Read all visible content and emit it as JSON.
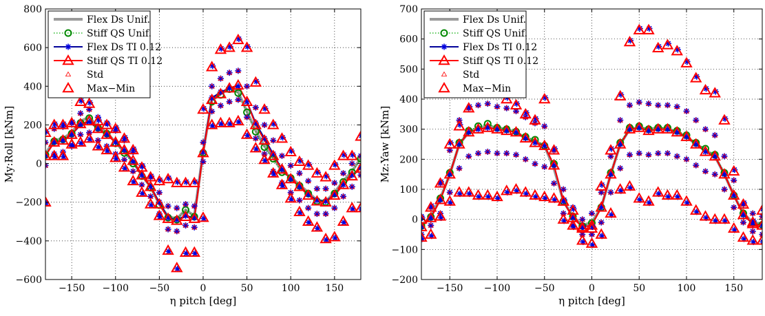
{
  "chart_data": [
    {
      "type": "scatter",
      "xlabel": "η pitch [deg]",
      "ylabel": "My:Roll  [kNm]",
      "xlim": [
        -180,
        180
      ],
      "ylim": [
        -600,
        800
      ],
      "xticks": [
        -150,
        -100,
        -50,
        0,
        50,
        100,
        150
      ],
      "yticks": [
        -600,
        -400,
        -200,
        0,
        200,
        400,
        600,
        800
      ],
      "xtick_labels": [
        "−150",
        "−100",
        "−50",
        "0",
        "50",
        "100",
        "150"
      ],
      "ytick_labels": [
        "−600",
        "−400",
        "−200",
        "0",
        "200",
        "400",
        "600",
        "800"
      ],
      "grid": true,
      "legend_position": "top-left",
      "legend": [
        "Flex Ds Unif.",
        "Stiff QS Unif.",
        "Flex Ds TI 0.12",
        "Stiff QS TI 0.12",
        "Std",
        "Max−Min"
      ],
      "x": [
        -180,
        -170,
        -160,
        -150,
        -140,
        -130,
        -120,
        -110,
        -100,
        -90,
        -80,
        -70,
        -60,
        -50,
        -40,
        -30,
        -20,
        -10,
        0,
        10,
        20,
        30,
        40,
        50,
        60,
        70,
        80,
        90,
        100,
        110,
        120,
        130,
        140,
        150,
        160,
        170,
        180
      ],
      "series": [
        {
          "name": "Flex Ds Unif.",
          "values": [
            50,
            120,
            130,
            160,
            220,
            240,
            190,
            160,
            110,
            60,
            10,
            -60,
            -120,
            -210,
            -275,
            -285,
            -240,
            -270,
            60,
            330,
            360,
            390,
            370,
            270,
            170,
            90,
            30,
            -40,
            -70,
            -110,
            -150,
            -190,
            -195,
            -150,
            -90,
            -40,
            30
          ]
        },
        {
          "name": "Stiff QS Unif.",
          "values": [
            45,
            115,
            125,
            155,
            210,
            235,
            185,
            155,
            105,
            55,
            0,
            -65,
            -125,
            -215,
            -280,
            -290,
            -240,
            -275,
            55,
            320,
            355,
            385,
            365,
            265,
            165,
            85,
            25,
            -45,
            -75,
            -115,
            -155,
            -195,
            -200,
            -155,
            -95,
            -45,
            25
          ]
        },
        {
          "name": "Flex Ds TI 0.12",
          "values": [
            40,
            110,
            120,
            150,
            200,
            215,
            180,
            150,
            110,
            70,
            10,
            -60,
            -120,
            -200,
            -280,
            -290,
            -270,
            -280,
            60,
            340,
            370,
            390,
            400,
            320,
            210,
            130,
            50,
            -30,
            -80,
            -120,
            -160,
            -190,
            -195,
            -160,
            -110,
            -60,
            -20
          ]
        },
        {
          "name": "Stiff QS TI 0.12",
          "values": [
            40,
            110,
            120,
            150,
            205,
            220,
            180,
            150,
            110,
            70,
            15,
            -60,
            -120,
            -210,
            -285,
            -295,
            -275,
            -285,
            55,
            330,
            360,
            390,
            405,
            320,
            200,
            120,
            40,
            -30,
            -80,
            -120,
            -165,
            -195,
            -200,
            -165,
            -110,
            -65,
            -25
          ]
        },
        {
          "name": "Std upper",
          "values": [
            110,
            180,
            190,
            210,
            260,
            280,
            240,
            210,
            170,
            120,
            60,
            -10,
            -70,
            -150,
            -220,
            -230,
            -210,
            -220,
            110,
            400,
            440,
            470,
            480,
            400,
            290,
            200,
            120,
            40,
            -10,
            -50,
            -90,
            -130,
            -130,
            -100,
            -50,
            0,
            40
          ]
        },
        {
          "name": "Std lower",
          "values": [
            -10,
            50,
            60,
            90,
            150,
            160,
            120,
            90,
            50,
            20,
            -40,
            -110,
            -170,
            -260,
            -340,
            -350,
            -320,
            -330,
            10,
            270,
            300,
            320,
            330,
            240,
            130,
            50,
            -40,
            -100,
            -150,
            -190,
            -230,
            -260,
            -260,
            -230,
            -170,
            -120,
            -60
          ]
        },
        {
          "name": "Max upper",
          "values": [
            160,
            200,
            200,
            210,
            320,
            310,
            220,
            200,
            180,
            130,
            70,
            -20,
            -70,
            -90,
            -80,
            -100,
            -100,
            -100,
            280,
            500,
            590,
            600,
            640,
            600,
            420,
            280,
            200,
            130,
            60,
            10,
            -10,
            -50,
            -70,
            -10,
            40,
            40,
            140
          ]
        },
        {
          "name": "Max lower",
          "values": [
            -200,
            40,
            40,
            100,
            110,
            130,
            90,
            70,
            30,
            -20,
            -90,
            -150,
            -210,
            -270,
            -450,
            -540,
            -460,
            -460,
            -280,
            200,
            210,
            210,
            220,
            150,
            80,
            20,
            -50,
            -110,
            -180,
            -250,
            -300,
            -330,
            -390,
            -380,
            -300,
            -230,
            -230
          ]
        }
      ]
    },
    {
      "type": "scatter",
      "xlabel": "η pitch [deg]",
      "ylabel": "Mz:Yaw  [kNm]",
      "xlim": [
        -180,
        180
      ],
      "ylim": [
        -200,
        700
      ],
      "xticks": [
        -150,
        -100,
        -50,
        0,
        50,
        100,
        150
      ],
      "yticks": [
        -200,
        -100,
        0,
        100,
        200,
        300,
        400,
        500,
        600,
        700
      ],
      "xtick_labels": [
        "−150",
        "−100",
        "−50",
        "0",
        "50",
        "100",
        "150"
      ],
      "ytick_labels": [
        "−200",
        "−100",
        "0",
        "100",
        "200",
        "300",
        "400",
        "500",
        "600",
        "700"
      ],
      "grid": true,
      "legend_position": "top-left",
      "legend": [
        "Flex Ds Unif.",
        "Stiff QS Unif.",
        "Flex Ds TI 0.12",
        "Stiff QS TI 0.12",
        "Std",
        "Max−Min"
      ],
      "x": [
        -180,
        -170,
        -160,
        -150,
        -140,
        -130,
        -120,
        -110,
        -100,
        -90,
        -80,
        -70,
        -60,
        -50,
        -40,
        -30,
        -20,
        -10,
        0,
        10,
        20,
        30,
        40,
        50,
        60,
        70,
        80,
        90,
        100,
        110,
        120,
        130,
        140,
        150,
        160,
        170,
        180
      ],
      "series": [
        {
          "name": "Flex Ds Unif.",
          "values": [
            -20,
            10,
            70,
            150,
            250,
            290,
            305,
            310,
            305,
            300,
            290,
            270,
            260,
            245,
            170,
            60,
            10,
            -20,
            -10,
            40,
            150,
            250,
            300,
            305,
            300,
            305,
            300,
            290,
            275,
            250,
            230,
            210,
            150,
            80,
            20,
            -10,
            -15
          ]
        },
        {
          "name": "Stiff QS Unif.",
          "values": [
            -22,
            8,
            70,
            155,
            255,
            295,
            310,
            318,
            305,
            300,
            292,
            275,
            265,
            245,
            185,
            60,
            10,
            -22,
            -12,
            40,
            155,
            255,
            305,
            310,
            300,
            305,
            305,
            295,
            280,
            255,
            235,
            215,
            155,
            80,
            20,
            -12,
            -18
          ]
        },
        {
          "name": "Flex Ds TI 0.12",
          "values": [
            -25,
            5,
            65,
            150,
            250,
            290,
            300,
            305,
            300,
            295,
            290,
            270,
            255,
            245,
            180,
            60,
            5,
            -25,
            -20,
            40,
            150,
            250,
            300,
            305,
            295,
            300,
            300,
            290,
            275,
            250,
            225,
            210,
            150,
            80,
            15,
            -15,
            -20
          ]
        },
        {
          "name": "Stiff QS TI 0.12",
          "values": [
            -25,
            5,
            65,
            150,
            250,
            290,
            300,
            305,
            300,
            295,
            290,
            270,
            255,
            245,
            180,
            60,
            5,
            -25,
            -20,
            40,
            150,
            250,
            300,
            305,
            295,
            300,
            300,
            290,
            275,
            250,
            225,
            210,
            150,
            80,
            15,
            -15,
            -20
          ]
        },
        {
          "name": "Std upper",
          "values": [
            10,
            40,
            120,
            230,
            330,
            370,
            380,
            385,
            375,
            370,
            360,
            340,
            320,
            310,
            230,
            100,
            40,
            0,
            20,
            90,
            210,
            330,
            380,
            390,
            385,
            380,
            380,
            375,
            360,
            330,
            300,
            280,
            210,
            130,
            50,
            20,
            10
          ]
        },
        {
          "name": "Std lower",
          "values": [
            -50,
            -20,
            20,
            90,
            170,
            210,
            220,
            225,
            220,
            220,
            215,
            200,
            185,
            175,
            120,
            20,
            -20,
            -50,
            -50,
            -10,
            90,
            170,
            215,
            220,
            215,
            220,
            220,
            210,
            200,
            180,
            160,
            150,
            100,
            40,
            -10,
            -40,
            -50
          ]
        },
        {
          "name": "Max upper",
          "values": [
            0,
            40,
            120,
            250,
            310,
            370,
            420,
            430,
            420,
            400,
            380,
            350,
            330,
            400,
            230,
            60,
            30,
            -30,
            -30,
            110,
            230,
            410,
            590,
            630,
            630,
            570,
            580,
            560,
            520,
            470,
            430,
            420,
            330,
            160,
            50,
            -10,
            30
          ]
        },
        {
          "name": "Max lower",
          "values": [
            -60,
            -50,
            10,
            60,
            90,
            90,
            80,
            80,
            75,
            95,
            100,
            90,
            80,
            75,
            70,
            0,
            -20,
            -70,
            -80,
            -50,
            20,
            100,
            110,
            70,
            60,
            90,
            80,
            80,
            60,
            30,
            10,
            0,
            0,
            -30,
            -60,
            -70,
            -70
          ]
        }
      ]
    }
  ]
}
